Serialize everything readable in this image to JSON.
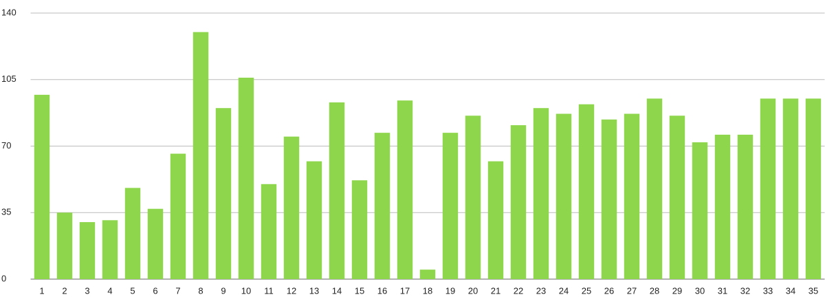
{
  "chart_data": {
    "type": "bar",
    "categories": [
      "1",
      "2",
      "3",
      "4",
      "5",
      "6",
      "7",
      "8",
      "9",
      "10",
      "11",
      "12",
      "13",
      "14",
      "15",
      "16",
      "17",
      "18",
      "19",
      "20",
      "21",
      "22",
      "23",
      "24",
      "25",
      "26",
      "27",
      "28",
      "29",
      "30",
      "31",
      "32",
      "33",
      "34",
      "35"
    ],
    "values": [
      97,
      35,
      30,
      31,
      48,
      37,
      66,
      130,
      90,
      106,
      50,
      75,
      62,
      93,
      52,
      77,
      94,
      5,
      77,
      86,
      62,
      81,
      90,
      87,
      92,
      84,
      87,
      95,
      86,
      72,
      76,
      76,
      95,
      95,
      95
    ],
    "color": "#8ed64b",
    "ylim": [
      0,
      140
    ],
    "yticks": [
      0,
      35,
      70,
      105,
      140
    ],
    "grid": true
  }
}
